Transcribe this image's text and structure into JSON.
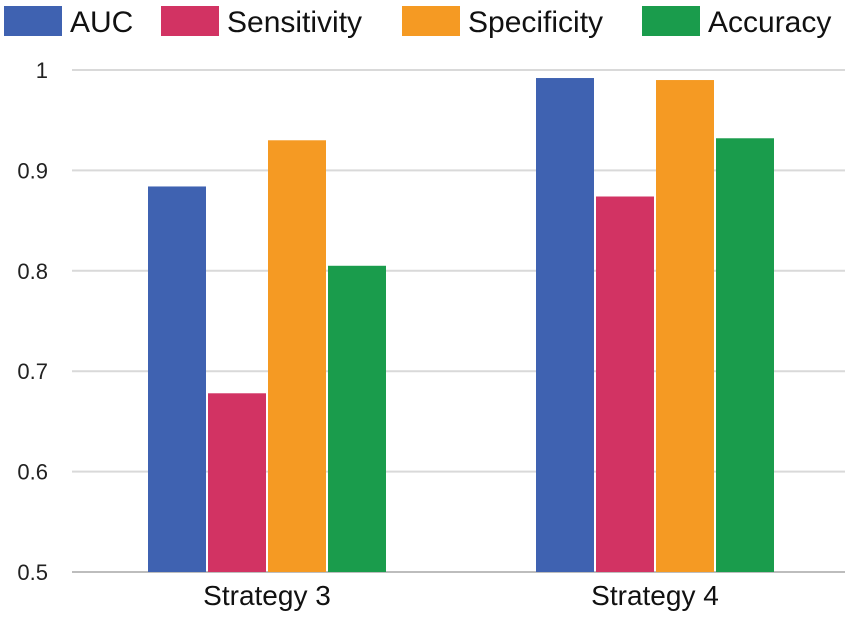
{
  "chart_data": {
    "type": "bar",
    "categories": [
      "Strategy 3",
      "Strategy 4"
    ],
    "series": [
      {
        "name": "AUC",
        "values": [
          0.884,
          0.992
        ],
        "color": "#3f62b1"
      },
      {
        "name": "Sensitivity",
        "values": [
          0.678,
          0.874
        ],
        "color": "#d23363"
      },
      {
        "name": "Specificity",
        "values": [
          0.93,
          0.99
        ],
        "color": "#f59a23"
      },
      {
        "name": "Accuracy",
        "values": [
          0.805,
          0.932
        ],
        "color": "#1a9c4c"
      }
    ],
    "title": "",
    "xlabel": "",
    "ylabel": "",
    "ylim": [
      0.5,
      1.0
    ],
    "yticks": [
      "0.5",
      "0.6",
      "0.7",
      "0.8",
      "0.9",
      "1"
    ],
    "grid": true,
    "legend_position": "top"
  }
}
